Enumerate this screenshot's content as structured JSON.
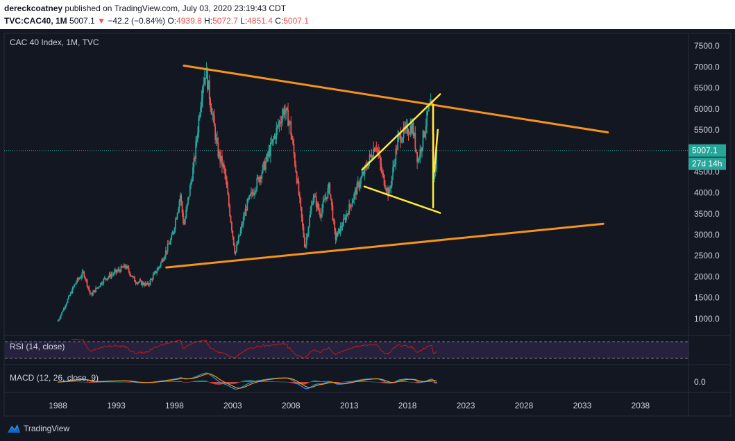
{
  "header": {
    "author": "dereckcoatney",
    "published_text": "published on TradingView.com, July 03, 2020 23:19:43 CDT",
    "symbol": "TVC:CAC40, 1M",
    "last": "5007.1",
    "change_arrow": "▼",
    "change": "−42.2 (−0.84%)",
    "o_label": "O:",
    "o": "4939.8",
    "h_label": "H:",
    "h": "5072.7",
    "l_label": "L:",
    "l": "4851.4",
    "c_label": "C:",
    "c": "5007.1"
  },
  "pane_title": "CAC 40 Index, 1M, TVC",
  "price_badge": "5007.1",
  "countdown_badge": "27d 14h",
  "rsi_label": "RSI (14, close)",
  "macd_label": "MACD (12, 26, close, 9)",
  "macd_axis_label": "0.0",
  "footer_brand": "TradingView",
  "colors": {
    "bg": "#131722",
    "up": "#26a69a",
    "down": "#ef5350",
    "trend_orange": "#f7931a",
    "pattern_yellow": "#ffeb3b",
    "rsi": "#b71c1c",
    "macd_line": "#2196f3",
    "signal_line": "#ff9800"
  },
  "chart_data": {
    "type": "candlestick",
    "title": "CAC 40 Index, 1M, TVC",
    "x_ticks": [
      "1988",
      "1993",
      "1998",
      "2003",
      "2008",
      "2013",
      "2018",
      "2023",
      "2028",
      "2033",
      "2038"
    ],
    "y_ticks": [
      "7500.0",
      "7000.0",
      "6500.0",
      "6000.0",
      "5500.0",
      "5000.0",
      "4500.0",
      "4000.0",
      "3500.0",
      "3000.0",
      "2500.0",
      "2000.0",
      "1500.0",
      "1000.0"
    ],
    "y_range": [
      600,
      7800
    ],
    "x_range": [
      1983.5,
      2042
    ],
    "last_price": 5007.1,
    "price_path": [
      [
        1988.0,
        950
      ],
      [
        1989.5,
        1850
      ],
      [
        1990.2,
        2100
      ],
      [
        1990.8,
        1550
      ],
      [
        1992.0,
        1950
      ],
      [
        1993.8,
        2250
      ],
      [
        1994.6,
        1900
      ],
      [
        1995.7,
        1800
      ],
      [
        1996.7,
        2250
      ],
      [
        1997.8,
        2950
      ],
      [
        1998.5,
        3950
      ],
      [
        1998.8,
        3200
      ],
      [
        1999.7,
        4750
      ],
      [
        2000.4,
        6600
      ],
      [
        2000.7,
        6900
      ],
      [
        2001.7,
        5000
      ],
      [
        2002.3,
        4500
      ],
      [
        2003.2,
        2550
      ],
      [
        2004.2,
        3700
      ],
      [
        2005.8,
        4700
      ],
      [
        2007.4,
        6000
      ],
      [
        2007.9,
        5650
      ],
      [
        2008.4,
        4600
      ],
      [
        2009.2,
        2700
      ],
      [
        2009.9,
        3950
      ],
      [
        2010.5,
        3500
      ],
      [
        2011.3,
        4150
      ],
      [
        2011.8,
        2900
      ],
      [
        2012.5,
        3300
      ],
      [
        2013.8,
        4200
      ],
      [
        2014.3,
        4500
      ],
      [
        2015.3,
        5200
      ],
      [
        2015.8,
        4450
      ],
      [
        2016.4,
        3950
      ],
      [
        2017.2,
        5300
      ],
      [
        2018.4,
        5600
      ],
      [
        2018.9,
        4750
      ],
      [
        2019.8,
        5950
      ],
      [
        2020.1,
        6050
      ],
      [
        2020.25,
        4400
      ],
      [
        2020.4,
        4600
      ],
      [
        2020.5,
        5007.1
      ]
    ],
    "rsi": {
      "upper": 70,
      "lower": 30,
      "range": [
        0,
        100
      ]
    },
    "macd": {
      "zero_label": "0.0"
    },
    "drawings": [
      {
        "name": "upper-trendline",
        "color": "orange",
        "points": [
          [
            1998.8,
            7030
          ],
          [
            2035.2,
            5440
          ]
        ]
      },
      {
        "name": "lower-trendline",
        "color": "orange",
        "points": [
          [
            1997.3,
            2220
          ],
          [
            2034.8,
            3260
          ]
        ]
      },
      {
        "name": "channel-upper",
        "color": "yellow",
        "points": [
          [
            2014.1,
            4550
          ],
          [
            2020.8,
            6350
          ]
        ]
      },
      {
        "name": "channel-lower",
        "color": "yellow",
        "points": [
          [
            2014.3,
            4150
          ],
          [
            2020.8,
            3520
          ]
        ]
      },
      {
        "name": "drop-line",
        "color": "yellow",
        "points": [
          [
            2020.2,
            6100
          ],
          [
            2020.2,
            3650
          ]
        ]
      },
      {
        "name": "rebound-line",
        "color": "yellow",
        "points": [
          [
            2020.3,
            4500
          ],
          [
            2020.6,
            5500
          ]
        ]
      }
    ]
  }
}
